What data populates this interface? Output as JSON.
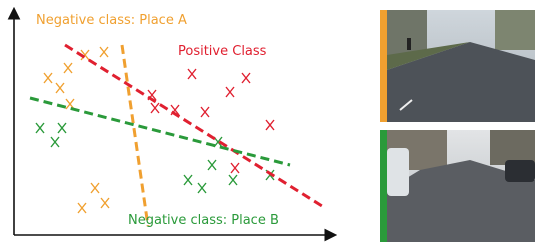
{
  "labels": {
    "negative_a": "Negative class: Place A",
    "positive": "Positive Class",
    "negative_b": "Negative class: Place B"
  }
}
